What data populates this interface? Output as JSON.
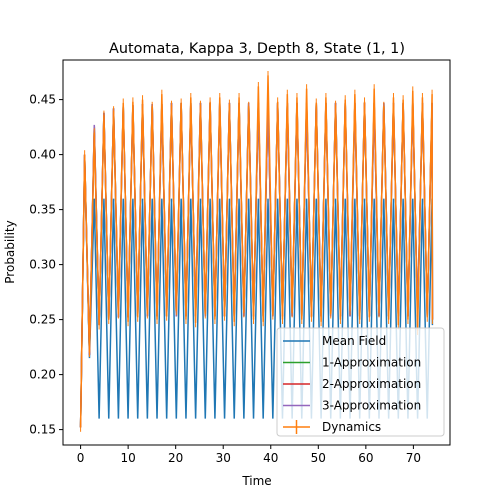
{
  "chart_data": {
    "type": "line",
    "title": "Automata, Kappa 3, Depth 8, State (1, 1)",
    "xlabel": "Time",
    "ylabel": "Probability",
    "xlim": [
      -3.7,
      77.7
    ],
    "ylim": [
      0.136,
      0.486
    ],
    "xticks": [
      "0",
      "10",
      "20",
      "30",
      "40",
      "50",
      "60",
      "70"
    ],
    "yticks": [
      "0.15",
      "0.20",
      "0.25",
      "0.30",
      "0.35",
      "0.40",
      "0.45"
    ],
    "legend_position": "bottom-right",
    "oscillation_period": 2.03,
    "series": [
      {
        "name": "Mean Field",
        "color": "#1f77b4",
        "start": 0.152,
        "peaks": [
          0.395,
          0.36,
          0.36,
          0.36,
          0.36,
          0.36,
          0.36,
          0.36,
          0.36,
          0.36,
          0.36,
          0.36,
          0.36,
          0.36,
          0.36,
          0.36,
          0.36,
          0.36,
          0.36,
          0.36,
          0.36,
          0.36,
          0.36,
          0.36,
          0.36,
          0.36,
          0.36,
          0.36,
          0.36,
          0.36,
          0.36,
          0.36,
          0.36,
          0.36,
          0.36,
          0.36,
          0.36
        ],
        "troughs": [
          0.215,
          0.16,
          0.16,
          0.16,
          0.16,
          0.16,
          0.16,
          0.16,
          0.16,
          0.16,
          0.16,
          0.16,
          0.16,
          0.16,
          0.16,
          0.16,
          0.16,
          0.16,
          0.16,
          0.16,
          0.16,
          0.16,
          0.16,
          0.16,
          0.16,
          0.16,
          0.16,
          0.16,
          0.16,
          0.16,
          0.16,
          0.16,
          0.16,
          0.16,
          0.16,
          0.16
        ],
        "end": 0.245
      },
      {
        "name": "1-Approximation",
        "color": "#2ca02c",
        "start": 0.152,
        "peaks": [
          0.4,
          0.425,
          0.438,
          0.442,
          0.444,
          0.445,
          0.446,
          0.446,
          0.446,
          0.447,
          0.447,
          0.447,
          0.447,
          0.447,
          0.447,
          0.447,
          0.447,
          0.447,
          0.447,
          0.447,
          0.447,
          0.447,
          0.447,
          0.447,
          0.447,
          0.447,
          0.447,
          0.447,
          0.447,
          0.447,
          0.447,
          0.447,
          0.447,
          0.447,
          0.447,
          0.447,
          0.447
        ],
        "troughs": [
          0.218,
          0.245,
          0.25,
          0.252,
          0.252,
          0.253,
          0.253,
          0.253,
          0.253,
          0.253,
          0.253,
          0.253,
          0.253,
          0.253,
          0.253,
          0.253,
          0.253,
          0.253,
          0.253,
          0.253,
          0.253,
          0.253,
          0.253,
          0.253,
          0.253,
          0.253,
          0.253,
          0.253,
          0.253,
          0.253,
          0.253,
          0.253,
          0.253,
          0.253,
          0.253,
          0.253
        ],
        "end": 0.25
      },
      {
        "name": "2-Approximation",
        "color": "#d62728",
        "start": 0.152,
        "peaks": [
          0.4,
          0.426,
          0.438,
          0.442,
          0.444,
          0.445,
          0.446,
          0.446,
          0.446,
          0.447,
          0.447,
          0.447,
          0.447,
          0.447,
          0.447,
          0.447,
          0.447,
          0.447,
          0.447,
          0.447,
          0.447,
          0.447,
          0.447,
          0.447,
          0.447,
          0.447,
          0.447,
          0.447,
          0.447,
          0.447,
          0.447,
          0.447,
          0.447,
          0.447,
          0.447,
          0.447,
          0.447
        ],
        "troughs": [
          0.218,
          0.245,
          0.25,
          0.252,
          0.252,
          0.253,
          0.253,
          0.253,
          0.253,
          0.253,
          0.253,
          0.253,
          0.253,
          0.253,
          0.253,
          0.253,
          0.253,
          0.253,
          0.253,
          0.253,
          0.253,
          0.253,
          0.253,
          0.253,
          0.253,
          0.253,
          0.253,
          0.253,
          0.253,
          0.253,
          0.253,
          0.253,
          0.253,
          0.253,
          0.253,
          0.253
        ],
        "end": 0.25
      },
      {
        "name": "3-Approximation",
        "color": "#9467bd",
        "start": 0.152,
        "peaks": [
          0.4,
          0.427,
          0.438,
          0.442,
          0.444,
          0.445,
          0.446,
          0.446,
          0.446,
          0.447,
          0.447,
          0.447,
          0.447,
          0.447,
          0.447,
          0.447,
          0.447,
          0.447,
          0.447,
          0.447,
          0.447,
          0.447,
          0.447,
          0.447,
          0.447,
          0.447,
          0.447,
          0.447,
          0.447,
          0.447,
          0.447,
          0.447,
          0.447,
          0.447,
          0.447,
          0.447,
          0.447
        ],
        "troughs": [
          0.218,
          0.245,
          0.25,
          0.252,
          0.252,
          0.253,
          0.253,
          0.253,
          0.253,
          0.253,
          0.253,
          0.253,
          0.253,
          0.253,
          0.253,
          0.253,
          0.253,
          0.253,
          0.253,
          0.253,
          0.253,
          0.253,
          0.253,
          0.253,
          0.253,
          0.253,
          0.253,
          0.253,
          0.253,
          0.253,
          0.253,
          0.253,
          0.253,
          0.253,
          0.253,
          0.253
        ],
        "end": 0.25
      },
      {
        "name": "Dynamics",
        "color": "#ff7f0e",
        "errorbar": true,
        "start": 0.152,
        "peaks": [
          0.4,
          0.42,
          0.436,
          0.44,
          0.447,
          0.448,
          0.45,
          0.444,
          0.455,
          0.445,
          0.447,
          0.452,
          0.445,
          0.448,
          0.452,
          0.446,
          0.452,
          0.444,
          0.462,
          0.472,
          0.448,
          0.455,
          0.452,
          0.46,
          0.447,
          0.452,
          0.445,
          0.45,
          0.455,
          0.448,
          0.46,
          0.444,
          0.452,
          0.45,
          0.458,
          0.452,
          0.455
        ],
        "troughs": [
          0.22,
          0.245,
          0.25,
          0.255,
          0.248,
          0.252,
          0.255,
          0.25,
          0.253,
          0.258,
          0.25,
          0.247,
          0.255,
          0.25,
          0.253,
          0.248,
          0.256,
          0.25,
          0.248,
          0.254,
          0.25,
          0.256,
          0.25,
          0.252,
          0.248,
          0.255,
          0.25,
          0.258,
          0.25,
          0.252,
          0.256,
          0.25,
          0.245,
          0.25,
          0.24,
          0.252
        ],
        "end": 0.25
      }
    ]
  }
}
